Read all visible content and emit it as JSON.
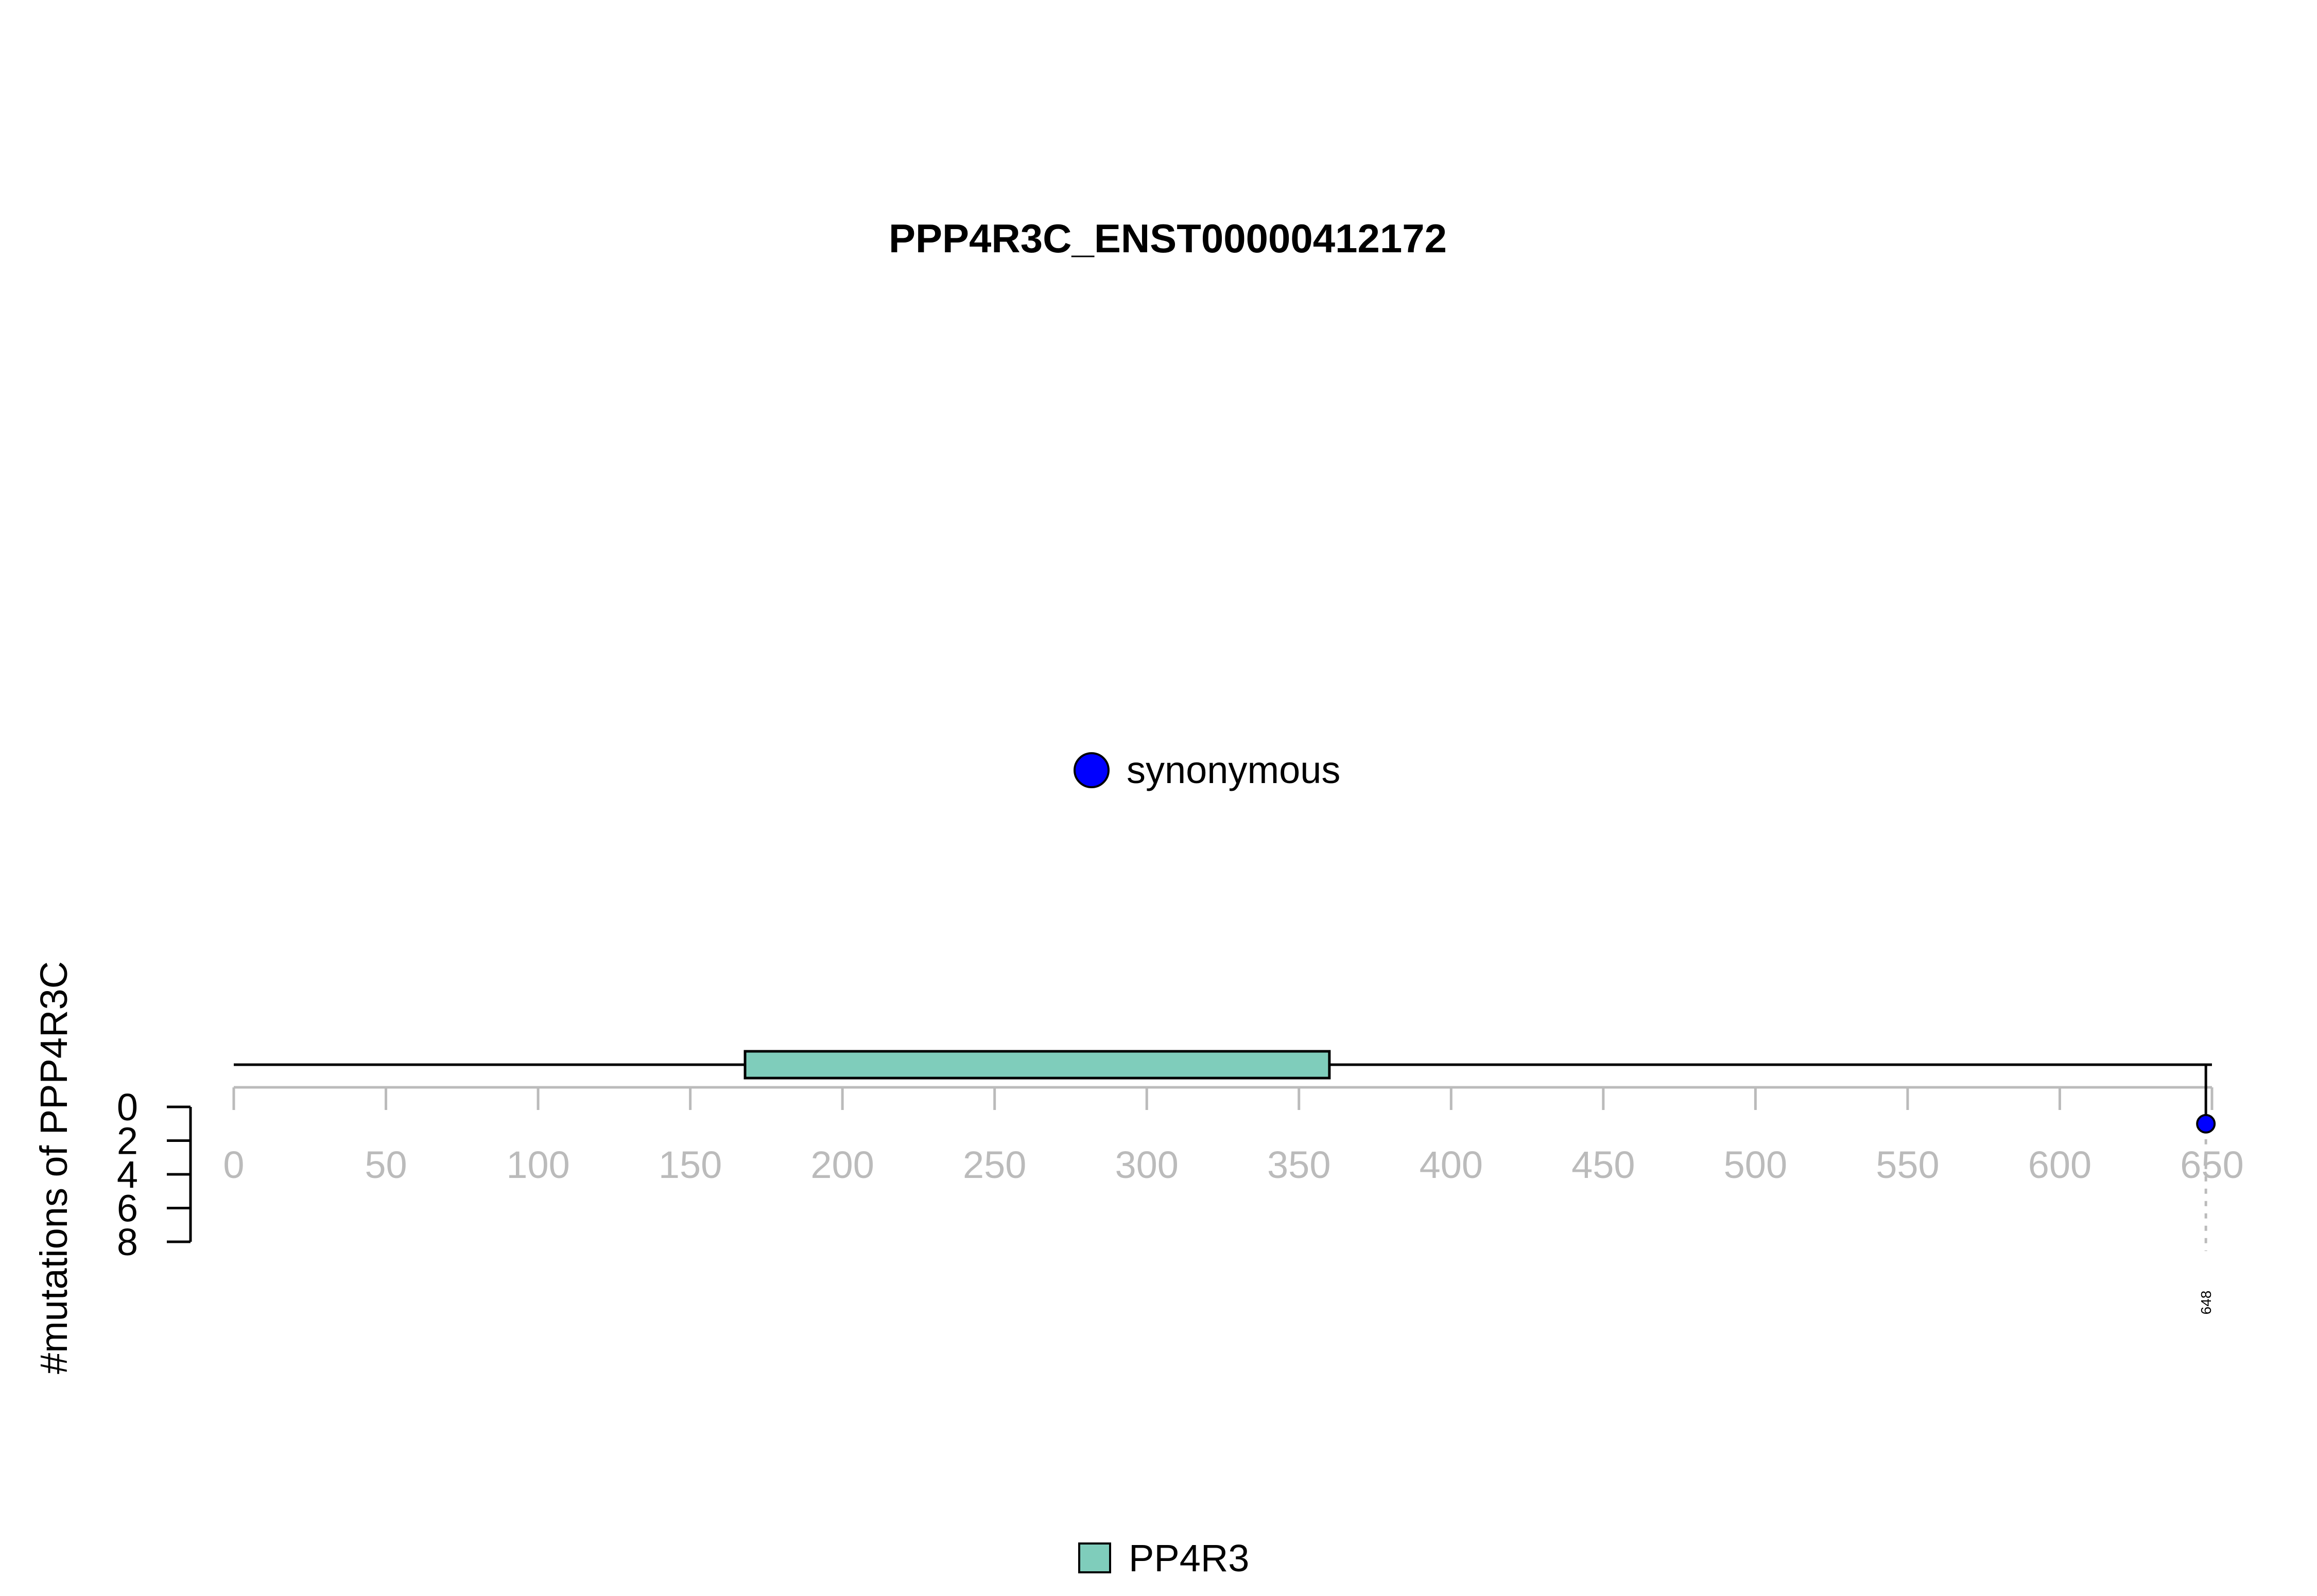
{
  "chart_data": {
    "type": "lollipop",
    "title": "PPP4R3C_ENST00000412172",
    "ylabel": "#mutations of PPP4R3C",
    "xlim": [
      0,
      650
    ],
    "x_ticks": [
      0,
      50,
      100,
      150,
      200,
      250,
      300,
      350,
      400,
      450,
      500,
      550,
      600,
      650
    ],
    "ylim": [
      0,
      8
    ],
    "y_ticks": [
      0,
      2,
      4,
      6,
      8
    ],
    "protein_length": 650,
    "domains": [
      {
        "name": "PP4R3",
        "start": 168,
        "end": 360,
        "color": "#7fcdbb"
      }
    ],
    "mutations": [
      {
        "position": 648,
        "count": 1,
        "type": "synonymous",
        "label": "648",
        "color": "#0000ff"
      }
    ],
    "mutation_legend": [
      {
        "label": "synonymous",
        "color": "#0000ff"
      }
    ],
    "domain_legend": [
      {
        "label": "PP4R3",
        "color": "#7fcdbb"
      }
    ]
  }
}
